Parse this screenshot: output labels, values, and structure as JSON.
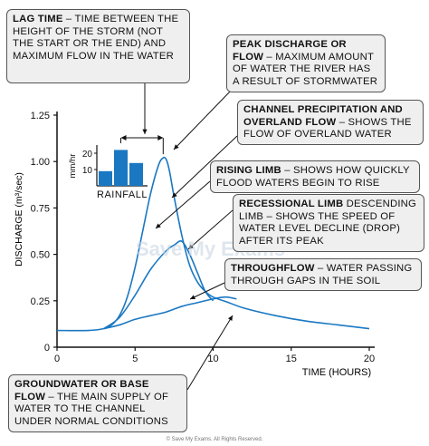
{
  "chart_data": {
    "type": "line",
    "xlabel": "TIME (HOURS)",
    "ylabel": "DISCHARGE (m³/sec)",
    "xlim": [
      0,
      20
    ],
    "ylim": [
      0,
      1.25
    ],
    "xticks": [
      "0",
      "5",
      "10",
      "15",
      "20"
    ],
    "yticks": [
      "0",
      "0.25",
      "0.50",
      "0.75",
      "1.00",
      "1.25"
    ],
    "grid": false,
    "series": [
      {
        "x": [
          0,
          2,
          3,
          3.5,
          4,
          4.5,
          5,
          5.5,
          6,
          6.5,
          6.8,
          7,
          7.2,
          7.5,
          8,
          8.5,
          9,
          9.5,
          10,
          11,
          12,
          14,
          16,
          18,
          20
        ],
        "y": [
          0.09,
          0.09,
          0.1,
          0.12,
          0.17,
          0.27,
          0.43,
          0.63,
          0.83,
          0.98,
          1.02,
          1.01,
          0.95,
          0.81,
          0.6,
          0.44,
          0.35,
          0.3,
          0.27,
          0.24,
          0.21,
          0.17,
          0.14,
          0.12,
          0.1
        ]
      },
      {
        "x": [
          3,
          4,
          5,
          6,
          7,
          7.5,
          8,
          8.5,
          9,
          9.5,
          10
        ],
        "y": [
          0.1,
          0.16,
          0.28,
          0.42,
          0.52,
          0.55,
          0.57,
          0.5,
          0.4,
          0.3,
          0.25
        ]
      },
      {
        "x": [
          3,
          4,
          5,
          6,
          7,
          8,
          9,
          10,
          10.8,
          11.5
        ],
        "y": [
          0.1,
          0.12,
          0.15,
          0.17,
          0.19,
          0.22,
          0.24,
          0.26,
          0.27,
          0.26
        ]
      }
    ],
    "inset": {
      "label": "RAINFALL",
      "ylabel": "mm/hr",
      "yticks": [
        "10",
        "20"
      ],
      "values": [
        9,
        22,
        14
      ],
      "ylim": [
        0,
        25
      ]
    }
  },
  "callouts": {
    "lag_title": "LAG TIME",
    "lag_text": " – TIME BETWEEN THE HEIGHT OF THE STORM (NOT THE START OR THE END) AND MAXIMUM FLOW IN THE WATER",
    "peak_title": "PEAK DISCHARGE OR FLOW",
    "peak_text": " – MAXIMUM AMOUNT OF WATER THE RIVER HAS A RESULT OF STORMWATER",
    "channel_title": "CHANNEL PRECIPITATION AND OVERLAND FLOW",
    "channel_text": " – SHOWS THE FLOW OF OVERLAND WATER",
    "rising_title": "RISING LIMB",
    "rising_text": " – SHOWS HOW QUICKLY FLOOD WATERS BEGIN TO RISE",
    "recessional_title": "RECESSIONAL LIMB",
    "recessional_text": " DESCENDING LIMB – SHOWS THE SPEED OF WATER LEVEL DECLINE (DROP) AFTER ITS PEAK",
    "through_title": "THROUGHFLOW",
    "through_text": " – WATER PASSING THROUGH GAPS IN THE SOIL",
    "ground_title": "GROUNDWATER OR BASE FLOW",
    "ground_text": " – THE MAIN SUPPLY OF WATER TO THE CHANNEL UNDER NORMAL CONDITIONS"
  },
  "watermark": "Save My Exams",
  "footer": "© Save My Exams. All Rights Reserved.",
  "colors": {
    "curve": "#1a78c2",
    "axis": "#111111",
    "bar": "#1a78c2",
    "callout_bg": "#efefef"
  }
}
